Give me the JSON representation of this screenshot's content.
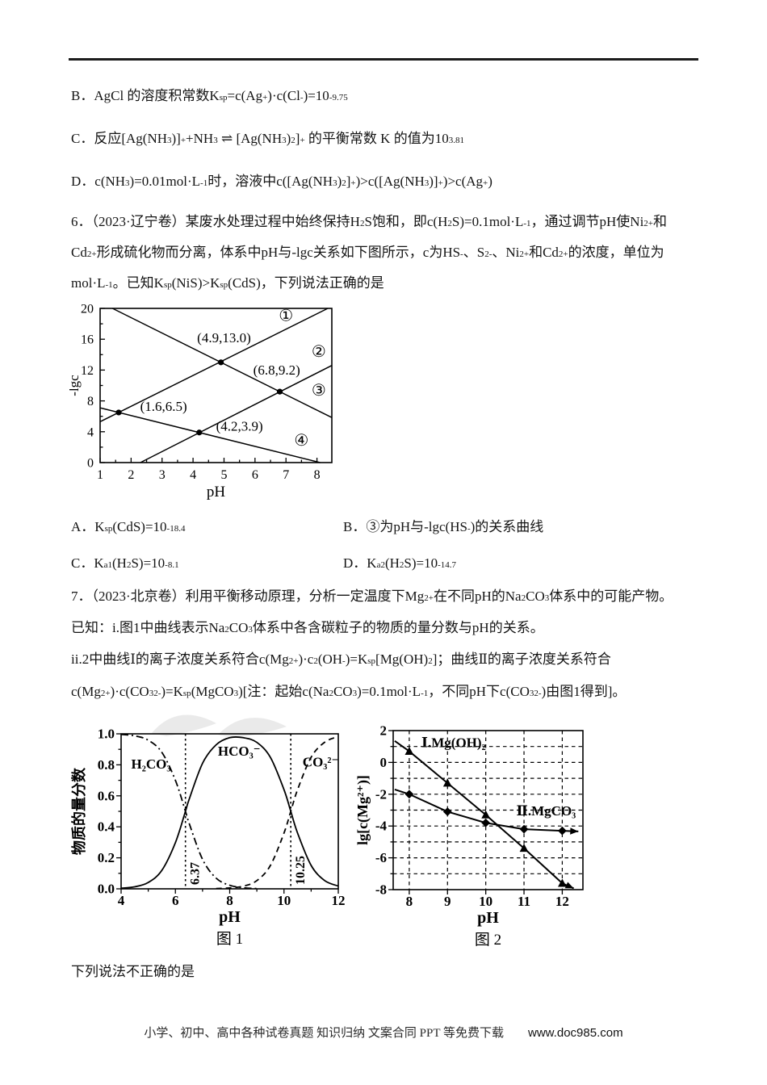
{
  "prev_options": {
    "b": "B．AgCl 的溶度积常数K_{sp}=c(Ag^{+})·c(Cl^{-})=10^{-9.75}",
    "c": "C．反应[Ag(NH_{3})]^{+}+NH_{3} ⇌ [Ag(NH_{3})_{2}]^{+} 的平衡常数 K 的值为10^{3.81}",
    "d": "D．c(NH_{3})=0.01mol·L^{-1}时，溶液中c([Ag(NH_{3})_{2}]^{+})>c([Ag(NH_{3})]^{+})>c(Ag^{+})"
  },
  "q6": {
    "lines": [
      "6．（2023·辽宁卷）某废水处理过程中始终保持H_{2}S饱和，即c(H_{2}S)=0.1mol·L^{-1}，通过调节pH使Ni^{2+}和",
      "Cd^{2+}形成硫化物而分离，体系中pH与-lgc关系如下图所示，c为HS^{-}、S^{2-}、Ni^{2+}和Cd^{2+}的浓度，单位为",
      "mol·L^{-1}。已知K_{sp}(NiS)>K_{sp}(CdS)，下列说法正确的是"
    ],
    "options": {
      "a": "A．K_{sp}(CdS)=10^{-18.4}",
      "b": "B．③为pH与-lgc(HS^{-})的关系曲线",
      "c": "C．K_{a1}(H_{2}S)=10^{-8.1}",
      "d": "D．K_{a2}(H_{2}S)=10^{-14.7}"
    }
  },
  "q7": {
    "lines": [
      "7．（2023·北京卷）利用平衡移动原理，分析一定温度下Mg^{2+}在不同pH的Na_{2}CO_{3}体系中的可能产物。",
      "已知：i.图1中曲线表示Na_{2}CO_{3}体系中各含碳粒子的物质的量分数与pH的关系。",
      "ii.2中曲线Ⅰ的离子浓度关系符合c(Mg^{2+})·c^{2}(OH^{-})=K_{sp}[Mg(OH)_{2}]；曲线Ⅱ的离子浓度关系符合",
      "c(Mg^{2+})·c(CO_{3}^{2-})=K_{sp}(MgCO_{3})[注：起始c(Na_{2}CO_{3})=0.1mol·L^{-1}，不同pH下c(CO_{3}^{2-})由图1得到]。"
    ]
  },
  "closing": "下列说法不正确的是",
  "footer": {
    "left": "小学、初中、高中各种试卷真题  知识归纳  文案合同  PPT 等免费下载",
    "site": "www.doc985.com"
  },
  "chart_data": [
    {
      "name": "q6-ph-lgc",
      "type": "line",
      "title": "",
      "xlabel": "pH",
      "ylabel": "-lgc",
      "xlim": [
        1,
        8.48
      ],
      "ylim": [
        0,
        20
      ],
      "xticks": [
        1,
        2,
        3,
        4,
        5,
        6,
        7,
        8
      ],
      "yticks": [
        0,
        4,
        8,
        12,
        16,
        20
      ],
      "xminor": 0.5,
      "yminor": 2,
      "tick_dir": "in",
      "bold": false,
      "margins": {
        "l": 38,
        "t": 8,
        "r": 10,
        "b": 47
      },
      "tick_size": 16,
      "label_size": 19,
      "xlabel_dy": 42,
      "ylabel_dx": 27,
      "series": [
        {
          "name": "curve-1-Cd2+",
          "points": [
            [
              1,
              5.3
            ],
            [
              8.35,
              20
            ]
          ],
          "dash": "solid",
          "width": 1.5
        },
        {
          "name": "curve-2-Ni2+",
          "points": [
            [
              2.3,
              0
            ],
            [
              8.48,
              12.6
            ]
          ],
          "dash": "solid",
          "width": 1.5
        },
        {
          "name": "curve-3-S2-",
          "points": [
            [
              1.4,
              20
            ],
            [
              8.48,
              5.84
            ]
          ],
          "dash": "solid",
          "width": 1.5
        },
        {
          "name": "curve-4-HS-",
          "points": [
            [
              1,
              7.1
            ],
            [
              8.1,
              0
            ]
          ],
          "dash": "solid",
          "width": 1.5
        }
      ],
      "point_labels": [
        {
          "x": 4.9,
          "y": 13.0,
          "lx": 5.0,
          "ly": 15.6,
          "text": "(4.9,13.0)"
        },
        {
          "x": 6.8,
          "y": 9.2,
          "lx": 6.7,
          "ly": 11.4,
          "text": "(6.8,9.2)"
        },
        {
          "x": 1.6,
          "y": 6.5,
          "lx": 3.05,
          "ly": 6.7,
          "text": "(1.6,6.5)"
        },
        {
          "x": 4.2,
          "y": 3.9,
          "lx": 5.5,
          "ly": 4.15,
          "text": "(4.2,3.9)"
        }
      ],
      "labels": [
        {
          "x": 7.0,
          "y": 18.4,
          "text": "①",
          "size": 20
        },
        {
          "x": 8.06,
          "y": 13.7,
          "text": "②",
          "size": 20
        },
        {
          "x": 8.06,
          "y": 8.7,
          "text": "③",
          "size": 20
        },
        {
          "x": 7.5,
          "y": 2.2,
          "text": "④",
          "size": 20
        }
      ]
    },
    {
      "name": "fig1-carbon-fractions",
      "type": "line",
      "title": "",
      "xlabel": "pH",
      "ylabel": "物质的量分数",
      "caption": "图 1",
      "xlim": [
        4,
        12
      ],
      "ylim": [
        0,
        1
      ],
      "xticks": [
        4,
        6,
        8,
        10,
        12
      ],
      "yticks": [
        0,
        0.2,
        0.4,
        0.6,
        0.8,
        1
      ],
      "ytick_labels": [
        "0.0",
        "0.2",
        "0.4",
        "0.6",
        "0.8",
        "1.0"
      ],
      "xminor": 1,
      "yminor": 0.1,
      "tick_dir": "out",
      "bold": true,
      "margins": {
        "l": 64,
        "t": 26,
        "r": 9,
        "b": 84
      },
      "tick_size": 17,
      "label_size": 20,
      "xlabel_dy": 41,
      "ylabel_dx": 46,
      "caption_dy": 68,
      "vlines": [
        {
          "x": 6.37,
          "label": "6.37"
        },
        {
          "x": 10.25,
          "label": "10.25"
        }
      ],
      "series": [
        {
          "name": "H2CO3",
          "smooth": true,
          "dash": "dashdot",
          "width": 1.8,
          "points": [
            [
              4,
              0.996
            ],
            [
              4.5,
              0.987
            ],
            [
              5,
              0.959
            ],
            [
              5.5,
              0.881
            ],
            [
              6,
              0.7
            ],
            [
              6.37,
              0.5
            ],
            [
              6.5,
              0.426
            ],
            [
              7,
              0.19
            ],
            [
              7.5,
              0.069
            ],
            [
              8,
              0.023
            ],
            [
              8.5,
              0.007
            ],
            [
              9,
              0.002
            ]
          ]
        },
        {
          "name": "HCO3-",
          "smooth": true,
          "dash": "solid",
          "width": 1.8,
          "points": [
            [
              4,
              0.004
            ],
            [
              4.5,
              0.013
            ],
            [
              5,
              0.041
            ],
            [
              5.5,
              0.119
            ],
            [
              6,
              0.298
            ],
            [
              6.37,
              0.5
            ],
            [
              6.5,
              0.574
            ],
            [
              7,
              0.81
            ],
            [
              7.5,
              0.929
            ],
            [
              8,
              0.975
            ],
            [
              8.5,
              0.975
            ],
            [
              9,
              0.945
            ],
            [
              9.5,
              0.848
            ],
            [
              10,
              0.64
            ],
            [
              10.25,
              0.5
            ],
            [
              10.5,
              0.36
            ],
            [
              11,
              0.151
            ],
            [
              11.5,
              0.053
            ],
            [
              12,
              0.018
            ]
          ]
        },
        {
          "name": "CO32-",
          "smooth": true,
          "dash": "dashed",
          "width": 1.8,
          "points": [
            [
              7.5,
              0.002
            ],
            [
              8,
              0.006
            ],
            [
              8.5,
              0.017
            ],
            [
              9,
              0.053
            ],
            [
              9.5,
              0.151
            ],
            [
              10,
              0.36
            ],
            [
              10.25,
              0.5
            ],
            [
              10.5,
              0.64
            ],
            [
              11,
              0.849
            ],
            [
              11.5,
              0.946
            ],
            [
              12,
              0.982
            ]
          ]
        }
      ],
      "labels": [
        {
          "x": 5.1,
          "y": 0.775,
          "text": "H₂CO₃",
          "size": 17
        },
        {
          "x": 8.35,
          "y": 0.86,
          "text": "HCO₃⁻",
          "size": 17
        },
        {
          "x": 11.35,
          "y": 0.79,
          "text": "CO₃²⁻",
          "size": 17
        }
      ]
    },
    {
      "name": "fig2-mg-solubility",
      "type": "line",
      "title": "",
      "xlabel": "pH",
      "ylabel": "lg[c(Mg²⁺)]",
      "caption": "图 2",
      "xlim": [
        7.58,
        12.54
      ],
      "ylim": [
        -8,
        2
      ],
      "xticks": [
        8,
        9,
        10,
        11,
        12
      ],
      "yticks": [
        -8,
        -6,
        -4,
        -2,
        0,
        2
      ],
      "yminor": 1,
      "tick_dir": "out",
      "bold": true,
      "margins": {
        "l": 49,
        "t": 22,
        "r": 18,
        "b": 83
      },
      "tick_size": 17,
      "label_size": 20,
      "xlabel_dy": 41,
      "ylabel_dx": 32,
      "caption_dy": 68,
      "grid": {
        "x": [
          8,
          9,
          10,
          11,
          12
        ],
        "y": [
          -7,
          -6,
          -5,
          -4,
          -3,
          -2,
          -1,
          0,
          1
        ]
      },
      "series": [
        {
          "name": "I-Mg(OH)2",
          "dash": "solid",
          "width": 2,
          "marker": "triangle",
          "arrow_end": true,
          "points": [
            [
              7.62,
              1.35
            ],
            [
              8,
              0.7
            ],
            [
              9,
              -1.3
            ],
            [
              10,
              -3.3
            ],
            [
              11,
              -5.4
            ],
            [
              12,
              -7.6
            ],
            [
              12.3,
              -7.92
            ]
          ],
          "markers_at": [
            [
              8,
              0.7
            ],
            [
              9,
              -1.3
            ],
            [
              10,
              -3.3
            ],
            [
              11,
              -5.4
            ],
            [
              12,
              -7.6
            ]
          ]
        },
        {
          "name": "II-MgCO3",
          "dash": "solid",
          "width": 2,
          "marker": "diamond",
          "arrow_end": true,
          "points": [
            [
              7.62,
              -1.7
            ],
            [
              8,
              -2.0
            ],
            [
              9,
              -3.1
            ],
            [
              10,
              -3.8
            ],
            [
              11,
              -4.2
            ],
            [
              12,
              -4.3
            ],
            [
              12.42,
              -4.34
            ]
          ],
          "markers_at": [
            [
              8,
              -2.0
            ],
            [
              9,
              -3.1
            ],
            [
              10,
              -3.8
            ],
            [
              11,
              -4.2
            ],
            [
              12,
              -4.3
            ]
          ]
        }
      ],
      "labels": [
        {
          "x": 8.32,
          "y": 0.95,
          "text": "Ⅰ.Mg(OH)₂",
          "size": 17,
          "anchor": "start"
        },
        {
          "x": 10.8,
          "y": -3.32,
          "text": "Ⅱ.MgCO₃",
          "size": 17,
          "anchor": "start"
        }
      ]
    }
  ]
}
